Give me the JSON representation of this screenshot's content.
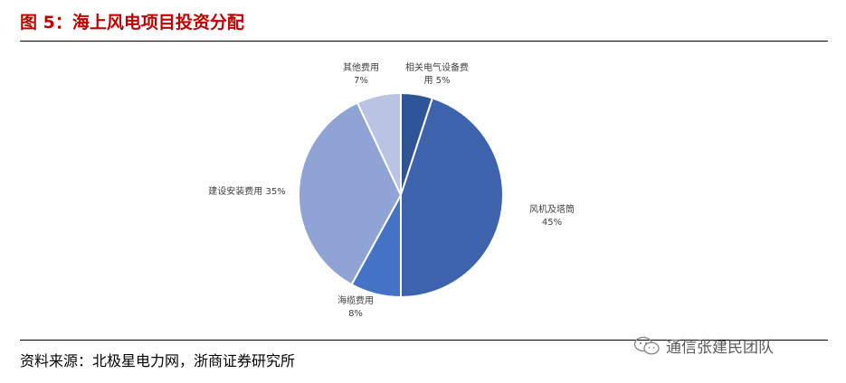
{
  "header": {
    "title": "图 5：海上风电项目投资分配"
  },
  "chart_data": {
    "type": "pie",
    "title": "",
    "slices": [
      {
        "label_lines": [
          "相关电气设备费",
          "用 5%"
        ],
        "value": 5,
        "color": "#2e5597"
      },
      {
        "label_lines": [
          "风机及塔筒",
          "45%"
        ],
        "value": 45,
        "color": "#3e63ad"
      },
      {
        "label_lines": [
          "海缆费用",
          "8%"
        ],
        "value": 8,
        "color": "#4472c4"
      },
      {
        "label_lines": [
          "建设安装费用 35%"
        ],
        "value": 35,
        "color": "#8fa3d4"
      },
      {
        "label_lines": [
          "其他费用",
          "7%"
        ],
        "value": 7,
        "color": "#b9c3e3"
      }
    ]
  },
  "footer": {
    "source": "资料来源：北极星电力网，浙商证券研究所"
  },
  "watermark": {
    "text": "通信张建民团队",
    "icon": "wechat-icon"
  }
}
